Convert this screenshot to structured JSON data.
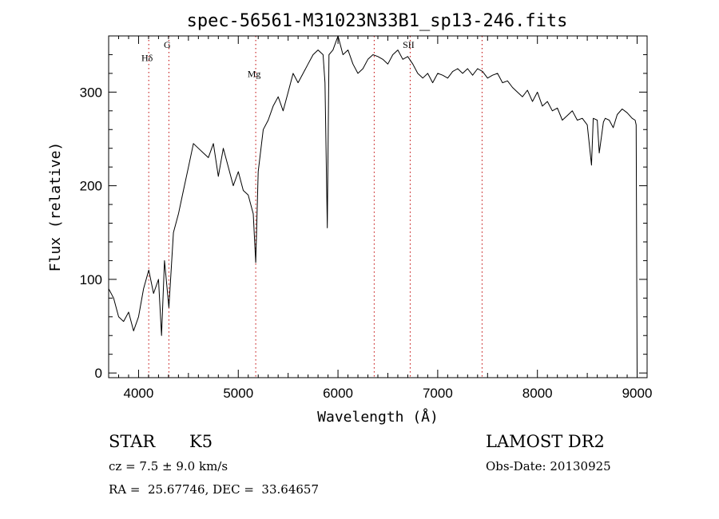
{
  "chart_data": {
    "type": "line",
    "title": "spec-56561-M31023N33B1_sp13-246.fits",
    "xlabel": "Wavelength (Å)",
    "ylabel": "Flux (relative)",
    "xlim": [
      3700,
      9100
    ],
    "ylim": [
      -5,
      360
    ],
    "xticks": [
      4000,
      5000,
      6000,
      7000,
      8000,
      9000
    ],
    "yticks": [
      0,
      100,
      200,
      300
    ],
    "line_color": "#000000",
    "marker_color": "#c00000",
    "line_markers": [
      {
        "label": "Hδ",
        "x": 4102,
        "label_y": 333
      },
      {
        "label": "G",
        "x": 4304,
        "label_y": 347
      },
      {
        "label": "Mg",
        "x": 5175,
        "label_y": 316
      },
      {
        "label": "",
        "x": 6363,
        "label_y": null
      },
      {
        "label": "SII",
        "x": 6724,
        "label_y": 347
      },
      {
        "label": "",
        "x": 7445,
        "label_y": null
      }
    ],
    "series": [
      {
        "x": [
          3700,
          3750,
          3800,
          3850,
          3900,
          3950,
          4000,
          4050,
          4102,
          4150,
          4200,
          4230,
          4260,
          4304,
          4350,
          4400,
          4450,
          4500,
          4550,
          4600,
          4650,
          4700,
          4750,
          4800,
          4850,
          4900,
          4950,
          5000,
          5050,
          5100,
          5150,
          5175,
          5200,
          5250,
          5300,
          5350,
          5400,
          5450,
          5500,
          5550,
          5600,
          5650,
          5700,
          5750,
          5800,
          5850,
          5870,
          5893,
          5910,
          5950,
          6000,
          6050,
          6100,
          6150,
          6200,
          6250,
          6300,
          6350,
          6400,
          6450,
          6500,
          6550,
          6600,
          6650,
          6700,
          6750,
          6800,
          6850,
          6900,
          6950,
          7000,
          7050,
          7100,
          7150,
          7200,
          7250,
          7300,
          7350,
          7400,
          7450,
          7500,
          7550,
          7600,
          7650,
          7700,
          7750,
          7800,
          7850,
          7900,
          7950,
          8000,
          8050,
          8100,
          8150,
          8200,
          8250,
          8300,
          8350,
          8400,
          8450,
          8500,
          8542,
          8560,
          8600,
          8620,
          8662,
          8680,
          8720,
          8760,
          8800,
          8850,
          8900,
          8950,
          8980,
          8990,
          9000
        ],
        "y": [
          90,
          80,
          60,
          55,
          65,
          45,
          60,
          90,
          110,
          85,
          100,
          40,
          120,
          70,
          150,
          170,
          195,
          220,
          245,
          240,
          235,
          230,
          245,
          210,
          240,
          220,
          200,
          215,
          195,
          190,
          170,
          118,
          215,
          260,
          270,
          285,
          295,
          280,
          300,
          320,
          310,
          320,
          330,
          340,
          345,
          340,
          310,
          155,
          340,
          345,
          360,
          340,
          345,
          330,
          320,
          325,
          335,
          340,
          338,
          335,
          330,
          340,
          345,
          335,
          338,
          330,
          320,
          315,
          320,
          310,
          320,
          318,
          315,
          322,
          325,
          320,
          325,
          318,
          325,
          322,
          315,
          318,
          320,
          310,
          312,
          305,
          300,
          295,
          302,
          290,
          300,
          285,
          290,
          280,
          283,
          270,
          275,
          280,
          270,
          272,
          265,
          222,
          272,
          270,
          235,
          268,
          272,
          270,
          262,
          276,
          282,
          278,
          272,
          270,
          265,
          0
        ]
      }
    ]
  },
  "footer": {
    "object_class": "STAR",
    "subclass": "K5",
    "survey": "LAMOST DR2",
    "cz": "cz = 7.5 ± 9.0 km/s",
    "obs_date": "Obs-Date: 20130925",
    "coords": "RA =  25.67746, DEC =  33.64657"
  }
}
